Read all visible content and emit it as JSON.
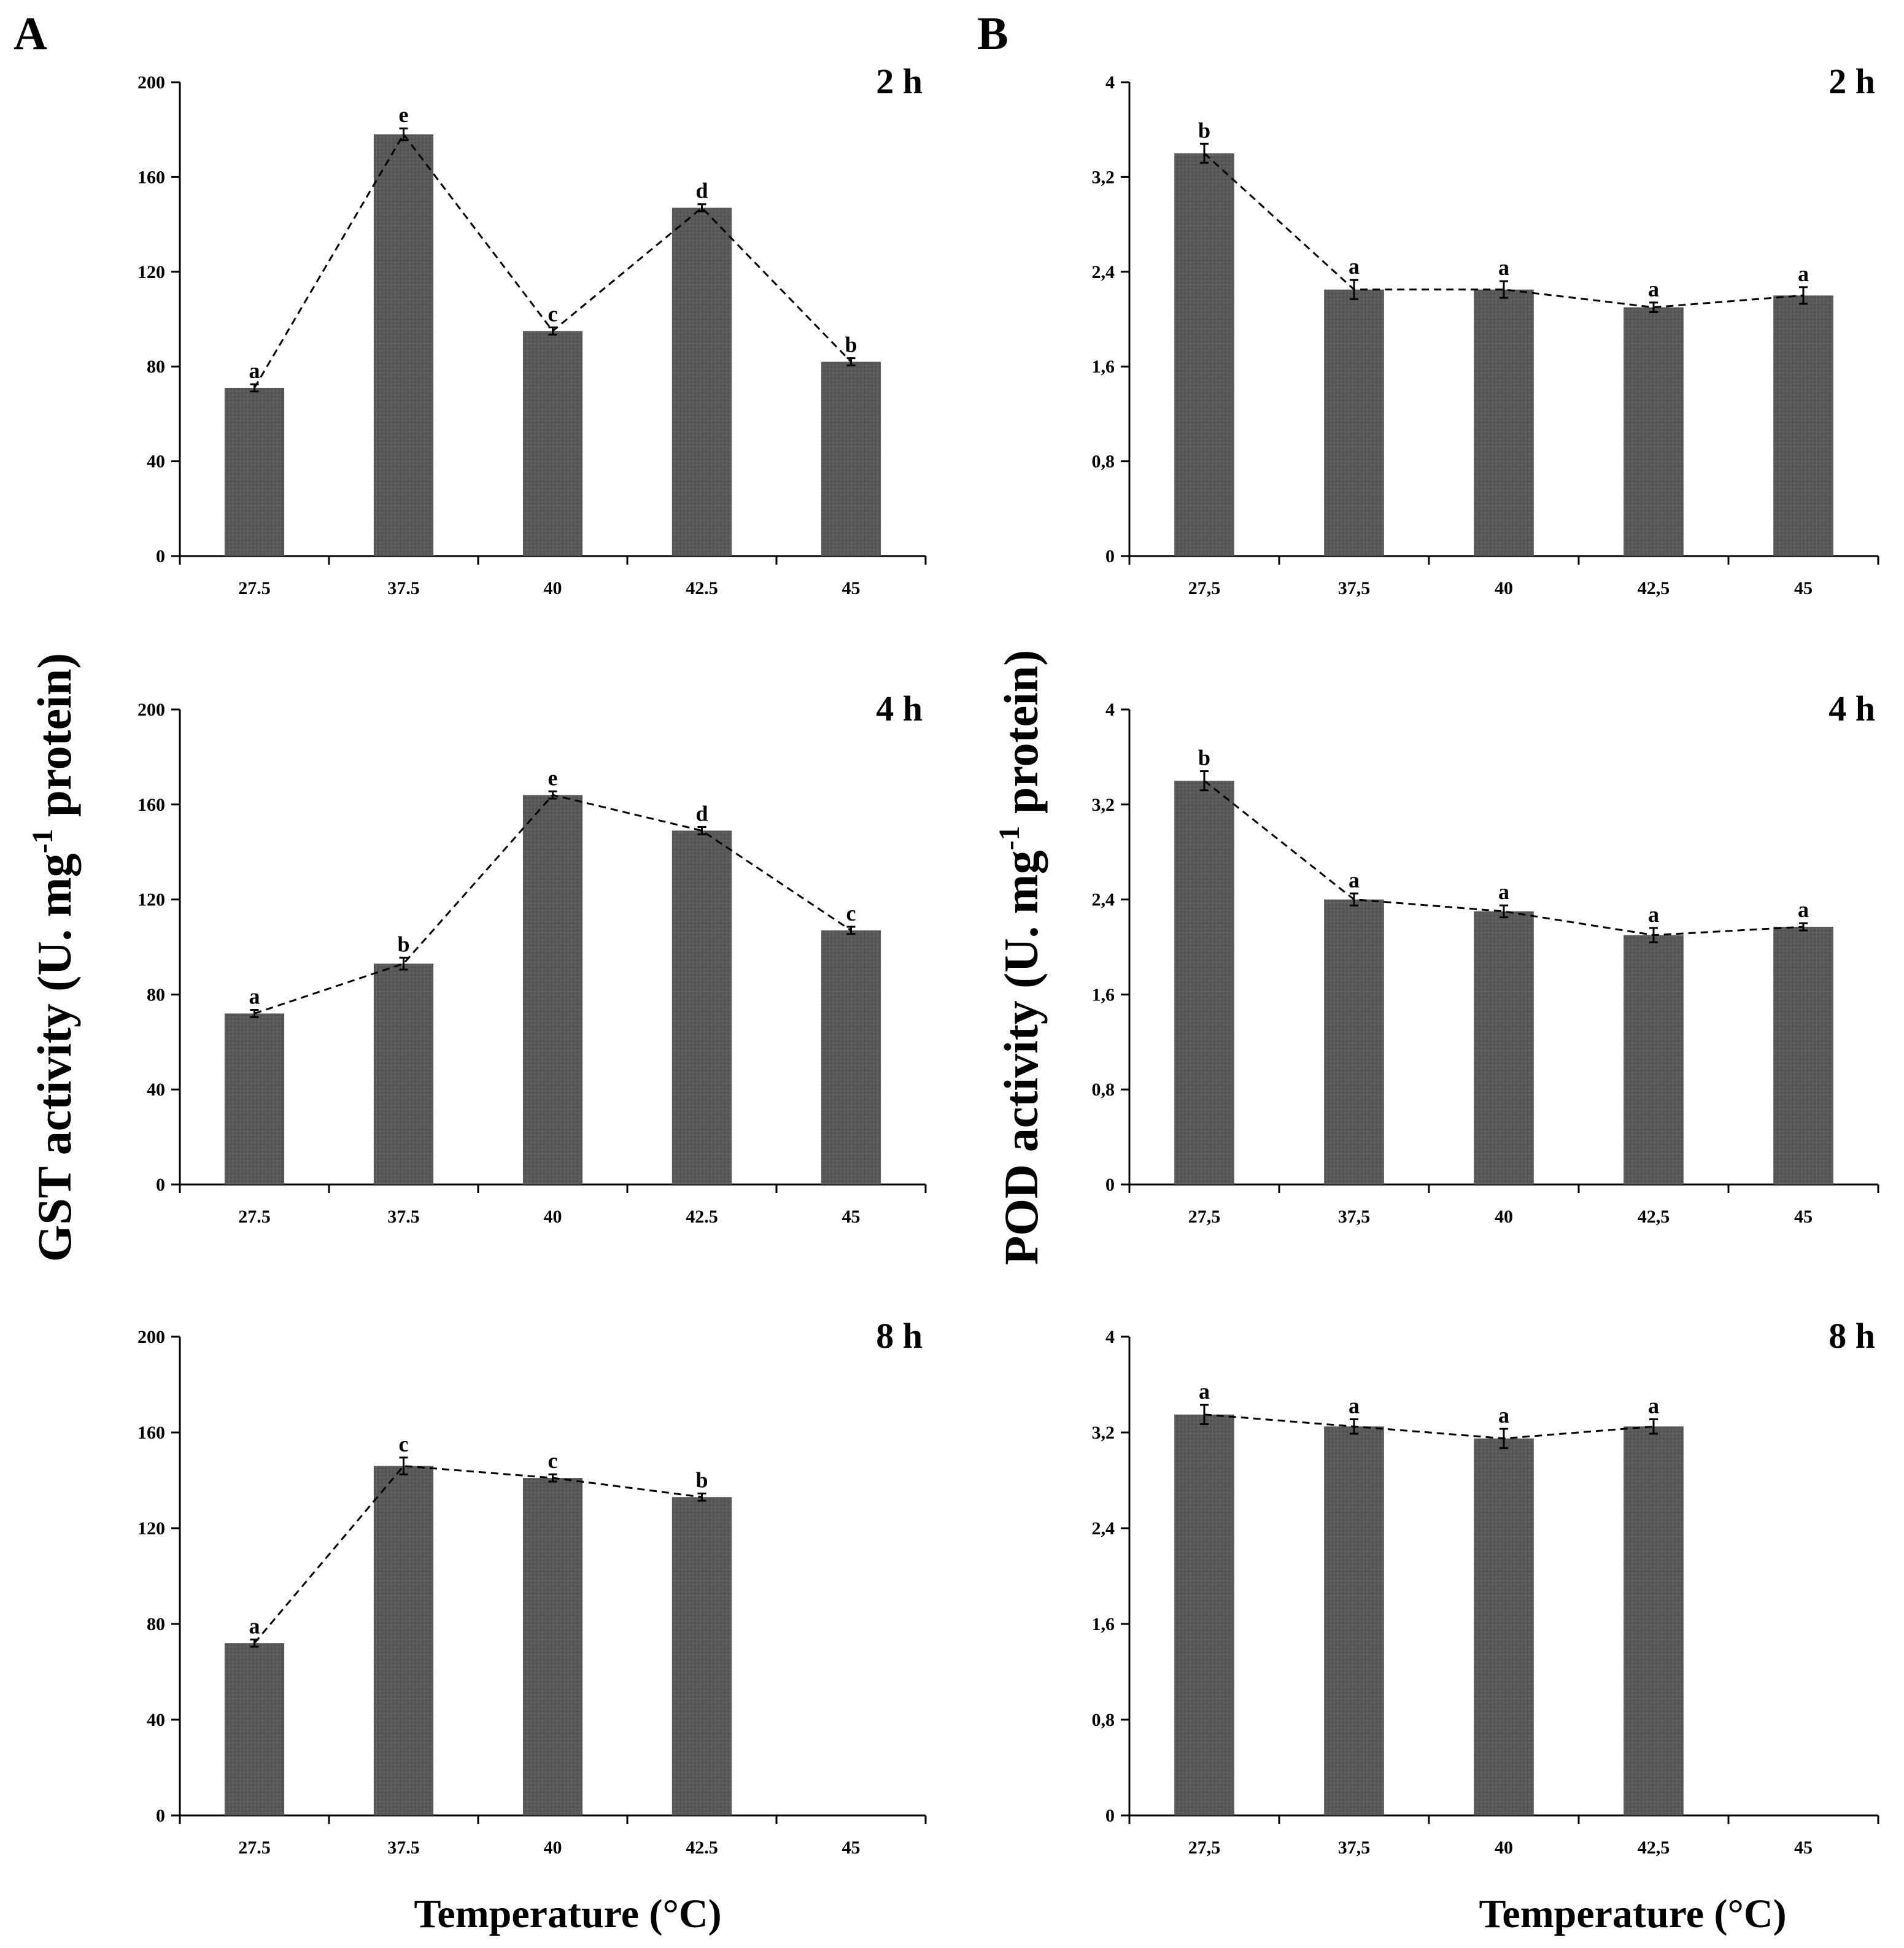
{
  "chart_data": {
    "type": "bar",
    "panel_labels": [
      "A",
      "B"
    ],
    "xlabel": "Temperature (°C)",
    "categories_A": [
      "27.5",
      "37.5",
      "40",
      "42.5",
      "45"
    ],
    "categories_B": [
      "27,5",
      "37,5",
      "40",
      "42,5",
      "45"
    ],
    "panels": [
      {
        "group": "A",
        "ylabel_main": "GST activity (U. mg",
        "ylabel_sup": "-1",
        "ylabel_end": " protein)",
        "charts": [
          {
            "title": "2 h",
            "ylim": [
              0,
              200
            ],
            "yticks": [
              "0",
              "40",
              "80",
              "120",
              "160",
              "200"
            ],
            "values": [
              71,
              178,
              95,
              147,
              82
            ],
            "errors": [
              1,
              2,
              1,
              1,
              1
            ],
            "letters": [
              "a",
              "e",
              "c",
              "d",
              "b"
            ]
          },
          {
            "title": "4 h",
            "ylim": [
              0,
              200
            ],
            "yticks": [
              "0",
              "40",
              "80",
              "120",
              "160",
              "200"
            ],
            "values": [
              72,
              93,
              164,
              149,
              107
            ],
            "errors": [
              1,
              2,
              1,
              1,
              1
            ],
            "letters": [
              "a",
              "b",
              "e",
              "d",
              "c"
            ]
          },
          {
            "title": "8 h",
            "ylim": [
              0,
              200
            ],
            "yticks": [
              "0",
              "40",
              "80",
              "120",
              "160",
              "200"
            ],
            "values": [
              72,
              146,
              141,
              133,
              null
            ],
            "errors": [
              1,
              3,
              1,
              1,
              null
            ],
            "letters": [
              "a",
              "c",
              "c",
              "b",
              ""
            ]
          }
        ]
      },
      {
        "group": "B",
        "ylabel_main": "POD activity (U. mg",
        "ylabel_sup": "-1",
        "ylabel_end": " protein)",
        "charts": [
          {
            "title": "2 h",
            "ylim": [
              0,
              4
            ],
            "yticks": [
              "0",
              "0,8",
              "1,6",
              "2,4",
              "3,2",
              "4"
            ],
            "values": [
              3.4,
              2.25,
              2.25,
              2.1,
              2.2
            ],
            "errors": [
              0.07,
              0.07,
              0.06,
              0.03,
              0.06
            ],
            "letters": [
              "b",
              "a",
              "a",
              "a",
              "a"
            ]
          },
          {
            "title": "4 h",
            "ylim": [
              0,
              4
            ],
            "yticks": [
              "0",
              "0,8",
              "1,6",
              "2,4",
              "3,2",
              "4"
            ],
            "values": [
              3.4,
              2.4,
              2.3,
              2.1,
              2.17
            ],
            "errors": [
              0.07,
              0.04,
              0.04,
              0.05,
              0.02
            ],
            "letters": [
              "b",
              "a",
              "a",
              "a",
              "a"
            ]
          },
          {
            "title": "8 h",
            "ylim": [
              0,
              4
            ],
            "yticks": [
              "0",
              "0,8",
              "1,6",
              "2,4",
              "3,2",
              "4"
            ],
            "values": [
              3.35,
              3.25,
              3.15,
              3.25,
              null
            ],
            "errors": [
              0.07,
              0.05,
              0.07,
              0.05,
              null
            ],
            "letters": [
              "a",
              "a",
              "a",
              "a",
              ""
            ]
          }
        ]
      }
    ]
  }
}
